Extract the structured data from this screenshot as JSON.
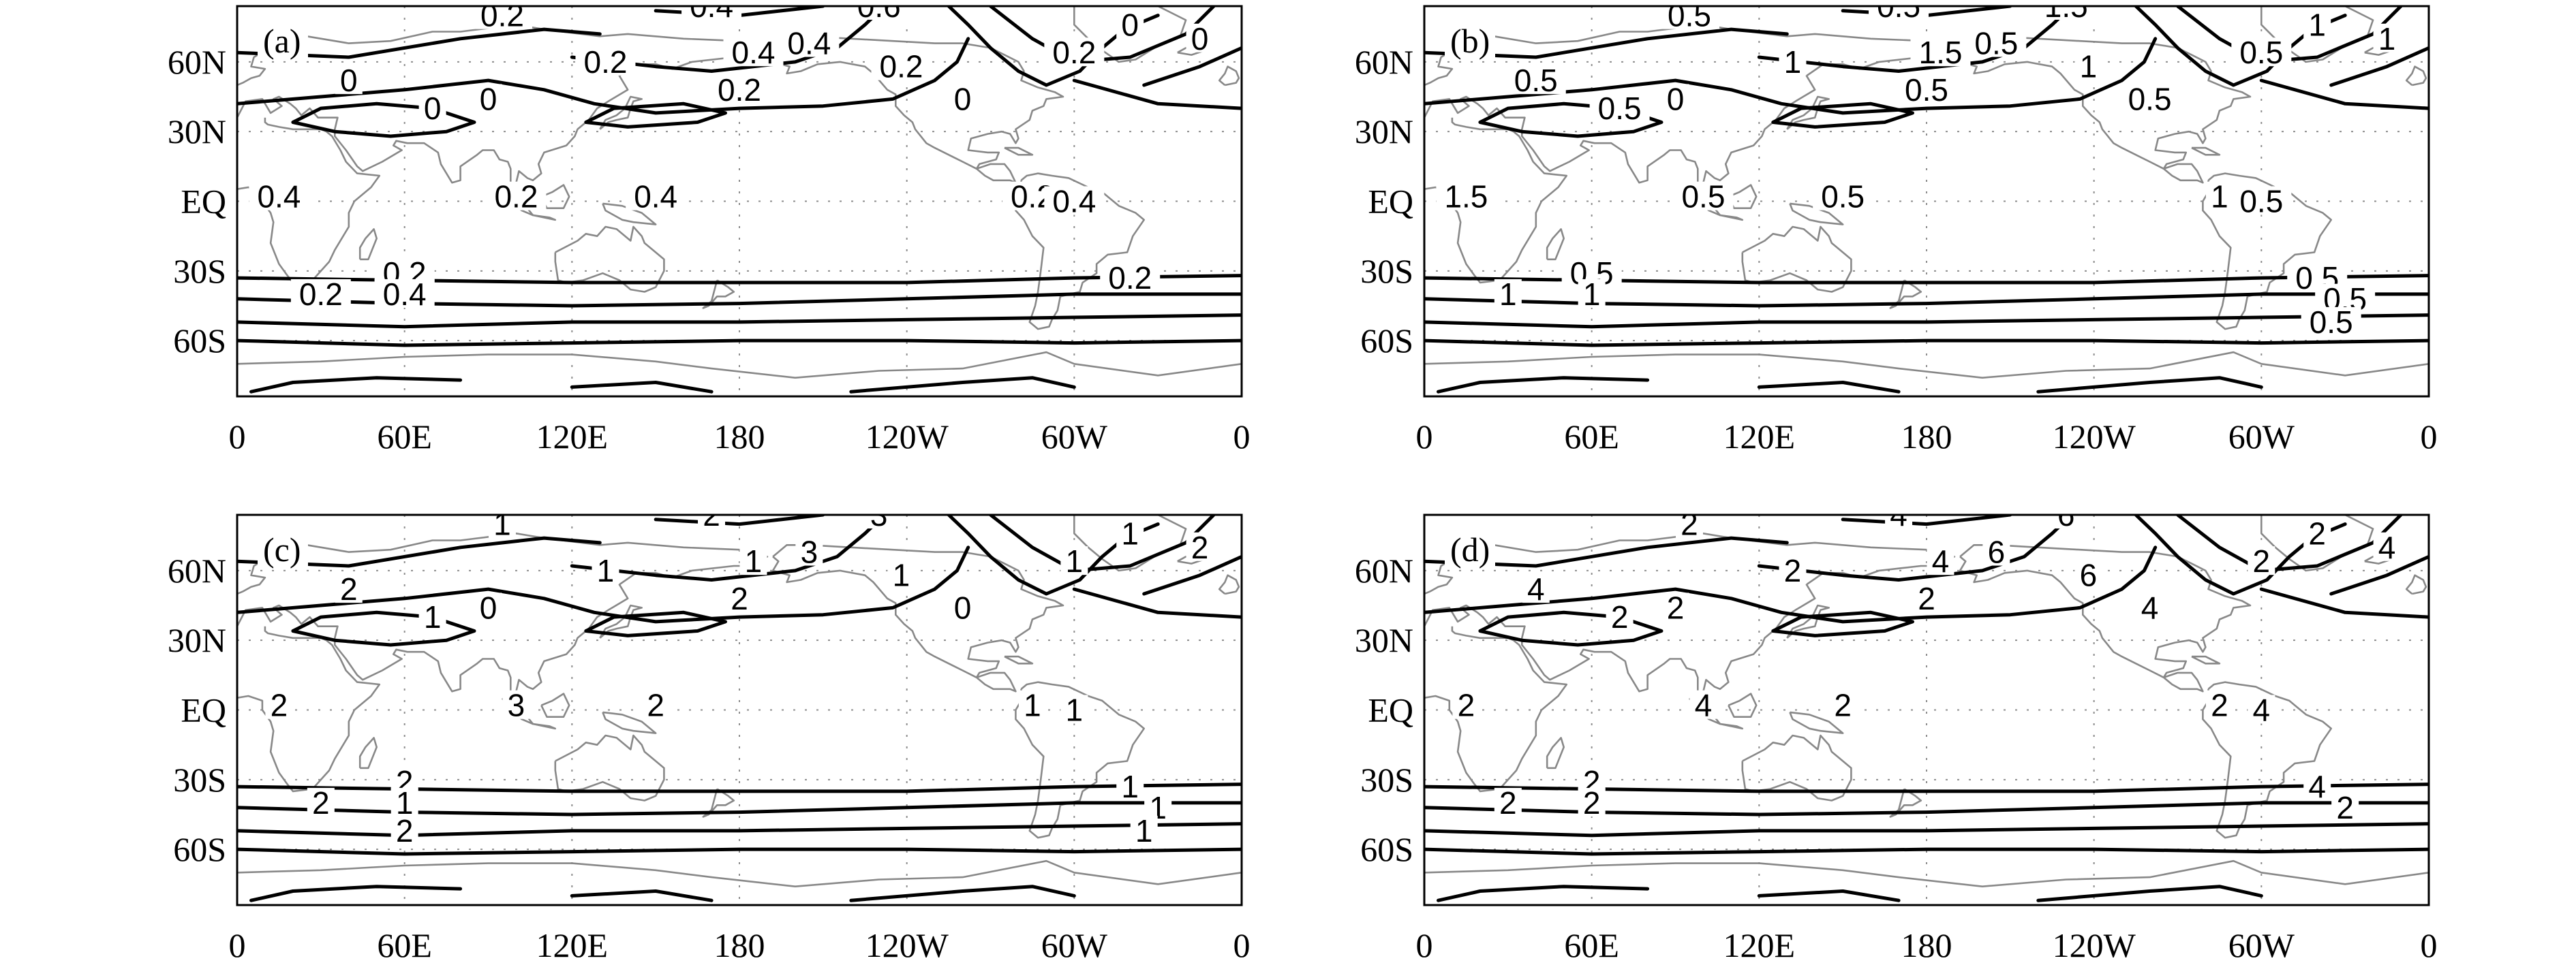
{
  "chart_data": [
    {
      "type": "contour-map",
      "panel_label": "(a)",
      "lon_ticks": [
        "0",
        "60E",
        "120E",
        "180",
        "120W",
        "60W",
        "0"
      ],
      "lat_ticks": [
        "60N",
        "30N",
        "EQ",
        "30S",
        "60S"
      ],
      "contour_labels": [
        "0.2",
        "0.4",
        "0.6",
        "0.2",
        "0.4",
        "0.2",
        "0.4",
        "0.2",
        "0",
        "0",
        "0",
        "0",
        "0",
        "0",
        "0.2",
        "0.4",
        "0.2",
        "0.4",
        "0.2",
        "0.4",
        "0.2",
        "0.2",
        "0.4",
        "0.2"
      ]
    },
    {
      "type": "contour-map",
      "panel_label": "(b)",
      "lon_ticks": [
        "0",
        "60E",
        "120E",
        "180",
        "120W",
        "60W",
        "0"
      ],
      "lat_ticks": [
        "60N",
        "30N",
        "EQ",
        "30S",
        "60S"
      ],
      "contour_labels": [
        "0.5",
        "0.5",
        "1.5",
        "1",
        "0.5",
        "0.5",
        "1.5",
        "0.5",
        "1",
        "1",
        "0.5",
        "0.5",
        "0",
        "0.5",
        "1",
        "1.5",
        "0.5",
        "0.5",
        "1",
        "0.5",
        "0.5",
        "1",
        "1",
        "0.5",
        "0.5",
        "0.5"
      ]
    },
    {
      "type": "contour-map",
      "panel_label": "(c)",
      "lon_ticks": [
        "0",
        "60E",
        "120E",
        "180",
        "120W",
        "60W",
        "0"
      ],
      "lat_ticks": [
        "60N",
        "30N",
        "EQ",
        "30S",
        "60S"
      ],
      "contour_labels": [
        "1",
        "2",
        "3",
        "1",
        "3",
        "2",
        "1",
        "1",
        "1",
        "2",
        "2",
        "1",
        "0",
        "0",
        "1",
        "2",
        "3",
        "2",
        "1",
        "1",
        "2",
        "2",
        "1",
        "1",
        "1",
        "1",
        "2"
      ]
    },
    {
      "type": "contour-map",
      "panel_label": "(d)",
      "lon_ticks": [
        "0",
        "60E",
        "120E",
        "180",
        "120W",
        "60W",
        "0"
      ],
      "lat_ticks": [
        "60N",
        "30N",
        "EQ",
        "30S",
        "60S"
      ],
      "contour_labels": [
        "2",
        "4",
        "6",
        "2",
        "6",
        "2",
        "4",
        "2",
        "2",
        "4",
        "4",
        "2",
        "2",
        "4",
        "6",
        "2",
        "4",
        "2",
        "2",
        "4",
        "2",
        "2",
        "2",
        "4",
        "2"
      ]
    }
  ]
}
